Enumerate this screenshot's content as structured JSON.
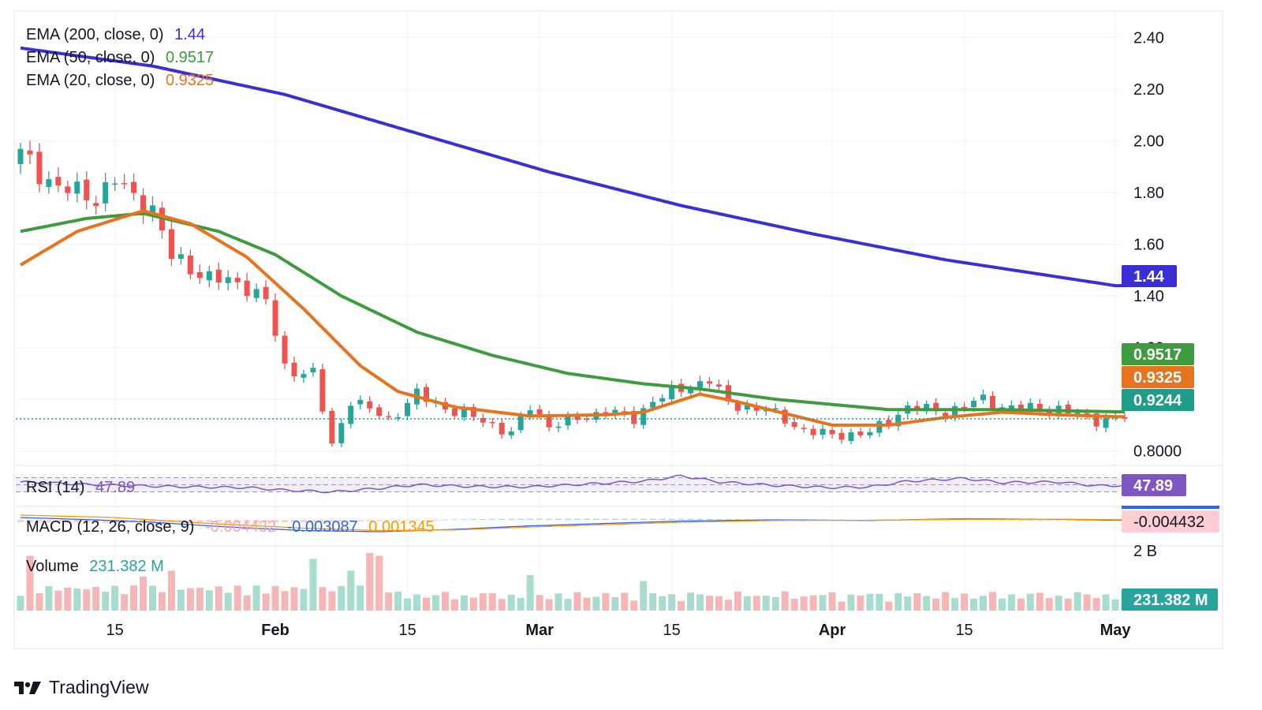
{
  "brand": {
    "name": "TradingView",
    "logo_icon": "tradingview-logo-icon"
  },
  "colors": {
    "up": "#26a69a",
    "down": "#ef5350",
    "ema200": "#3a2fd6",
    "ema50": "#3e9b3e",
    "ema20": "#e8731e",
    "last": "#1e9e88",
    "rsi": "#7e57c2",
    "macd_line": "#2962ff",
    "macd_signal": "#ff9800"
  },
  "legend": {
    "ema200": {
      "label": "EMA (200, close, 0)",
      "value": "1.44"
    },
    "ema50": {
      "label": "EMA (50, close, 0)",
      "value": "0.9517"
    },
    "ema20": {
      "label": "EMA (20, close, 0)",
      "value": "0.9325"
    },
    "rsi": {
      "label": "RSI (14)",
      "value": "47.89"
    },
    "macd": {
      "label": "MACD (12, 26, close, 9)",
      "hist": "-0.004432",
      "macd": "-0.003087",
      "signal": "0.001345"
    },
    "volume": {
      "label": "Volume",
      "value": "231.382 M"
    }
  },
  "price_labels": [
    {
      "text": "1.44",
      "kind": "ema200"
    },
    {
      "text": "0.9517",
      "kind": "ema50"
    },
    {
      "text": "0.9325",
      "kind": "ema20"
    },
    {
      "text": "0.9244",
      "kind": "last"
    }
  ],
  "pane_labels": {
    "rsi": "47.89",
    "macd": "-0.004432",
    "volume": "231.382 M",
    "volume_axis": "2 B"
  },
  "chart_data": {
    "type": "candlestick",
    "title": "",
    "y_axis": {
      "ticks": [
        2.4,
        2.2,
        2.0,
        1.8,
        1.6,
        1.4,
        1.2,
        1.0,
        0.8
      ],
      "tick_labels": [
        "2.40",
        "2.20",
        "2.00",
        "1.80",
        "1.60",
        "1.40",
        "1.20",
        "",
        "0.8000"
      ],
      "range": [
        0.75,
        2.5
      ]
    },
    "x_axis": {
      "ticks": [
        {
          "label": "15",
          "day": 10,
          "bold": false
        },
        {
          "label": "Feb",
          "day": 27,
          "bold": true
        },
        {
          "label": "15",
          "day": 41,
          "bold": false
        },
        {
          "label": "Mar",
          "day": 55,
          "bold": true
        },
        {
          "label": "15",
          "day": 69,
          "bold": false
        },
        {
          "label": "Apr",
          "day": 86,
          "bold": true
        },
        {
          "label": "15",
          "day": 100,
          "bold": false
        },
        {
          "label": "May",
          "day": 116,
          "bold": true
        }
      ],
      "range": [
        -0.5,
        116.5
      ]
    },
    "last_price": 0.9244,
    "ema200_anchors": [
      [
        0,
        2.36
      ],
      [
        14,
        2.29
      ],
      [
        28,
        2.18
      ],
      [
        42,
        2.03
      ],
      [
        56,
        1.88
      ],
      [
        70,
        1.75
      ],
      [
        84,
        1.64
      ],
      [
        98,
        1.54
      ],
      [
        116,
        1.44
      ]
    ],
    "ema50_anchors": [
      [
        0,
        1.65
      ],
      [
        7,
        1.7
      ],
      [
        13,
        1.72
      ],
      [
        21,
        1.65
      ],
      [
        27,
        1.56
      ],
      [
        34,
        1.4
      ],
      [
        42,
        1.26
      ],
      [
        50,
        1.17
      ],
      [
        58,
        1.1
      ],
      [
        66,
        1.06
      ],
      [
        72,
        1.04
      ],
      [
        80,
        1.0
      ],
      [
        92,
        0.96
      ],
      [
        104,
        0.96
      ],
      [
        116,
        0.9517
      ]
    ],
    "ema20_anchors": [
      [
        0,
        1.52
      ],
      [
        6,
        1.65
      ],
      [
        13,
        1.73
      ],
      [
        18,
        1.68
      ],
      [
        24,
        1.55
      ],
      [
        30,
        1.35
      ],
      [
        36,
        1.13
      ],
      [
        40,
        1.03
      ],
      [
        46,
        0.97
      ],
      [
        54,
        0.935
      ],
      [
        62,
        0.94
      ],
      [
        66,
        0.95
      ],
      [
        72,
        1.02
      ],
      [
        76,
        0.99
      ],
      [
        86,
        0.9
      ],
      [
        92,
        0.9
      ],
      [
        98,
        0.93
      ],
      [
        104,
        0.95
      ],
      [
        110,
        0.94
      ],
      [
        116,
        0.9325
      ]
    ],
    "close_anchors": [
      [
        0,
        1.95
      ],
      [
        2,
        1.88
      ],
      [
        4,
        1.82
      ],
      [
        8,
        1.78
      ],
      [
        10,
        1.85
      ],
      [
        12,
        1.78
      ],
      [
        14,
        1.74
      ],
      [
        16,
        1.55
      ],
      [
        20,
        1.47
      ],
      [
        24,
        1.44
      ],
      [
        26,
        1.38
      ],
      [
        28,
        1.12
      ],
      [
        31,
        1.1
      ],
      [
        33,
        0.82
      ],
      [
        35,
        1.0
      ],
      [
        39,
        0.92
      ],
      [
        42,
        1.02
      ],
      [
        44,
        0.98
      ],
      [
        48,
        0.93
      ],
      [
        52,
        0.87
      ],
      [
        54,
        0.97
      ],
      [
        56,
        0.9
      ],
      [
        60,
        0.93
      ],
      [
        62,
        0.96
      ],
      [
        65,
        0.92
      ],
      [
        67,
        1.0
      ],
      [
        71,
        1.05
      ],
      [
        73,
        1.08
      ],
      [
        75,
        0.98
      ],
      [
        79,
        0.96
      ],
      [
        83,
        0.88
      ],
      [
        86,
        0.86
      ],
      [
        90,
        0.87
      ],
      [
        94,
        0.97
      ],
      [
        98,
        0.95
      ],
      [
        102,
        1.0
      ],
      [
        104,
        0.97
      ],
      [
        110,
        0.96
      ],
      [
        114,
        0.92
      ],
      [
        116,
        0.9244
      ]
    ],
    "rsi": {
      "range": [
        0,
        100
      ],
      "bands": [
        70,
        50,
        30
      ],
      "last": 47.89,
      "anchors": [
        [
          0,
          58
        ],
        [
          8,
          50
        ],
        [
          16,
          45
        ],
        [
          24,
          42
        ],
        [
          28,
          35
        ],
        [
          33,
          30
        ],
        [
          38,
          40
        ],
        [
          42,
          50
        ],
        [
          48,
          45
        ],
        [
          54,
          44
        ],
        [
          60,
          52
        ],
        [
          66,
          60
        ],
        [
          70,
          75
        ],
        [
          74,
          58
        ],
        [
          80,
          48
        ],
        [
          86,
          42
        ],
        [
          90,
          44
        ],
        [
          94,
          60
        ],
        [
          100,
          68
        ],
        [
          104,
          56
        ],
        [
          110,
          58
        ],
        [
          114,
          47
        ],
        [
          116,
          47.89
        ]
      ]
    },
    "macd": {
      "last_hist": -0.004432,
      "last_macd": -0.003087,
      "last_signal": 0.001345,
      "macd_anchors": [
        [
          0,
          0.02
        ],
        [
          8,
          0.0
        ],
        [
          14,
          -0.02
        ],
        [
          22,
          -0.06
        ],
        [
          30,
          -0.09
        ],
        [
          38,
          -0.1
        ],
        [
          46,
          -0.08
        ],
        [
          54,
          -0.05
        ],
        [
          62,
          -0.03
        ],
        [
          70,
          -0.01
        ],
        [
          80,
          0.0
        ],
        [
          90,
          -0.005
        ],
        [
          100,
          0.01
        ],
        [
          110,
          0.005
        ],
        [
          116,
          -0.003087
        ]
      ],
      "signal_anchors": [
        [
          0,
          0.04
        ],
        [
          10,
          0.02
        ],
        [
          20,
          -0.03
        ],
        [
          30,
          -0.07
        ],
        [
          38,
          -0.09
        ],
        [
          46,
          -0.085
        ],
        [
          54,
          -0.06
        ],
        [
          62,
          -0.04
        ],
        [
          70,
          -0.02
        ],
        [
          80,
          -0.005
        ],
        [
          90,
          -0.003
        ],
        [
          100,
          0.005
        ],
        [
          110,
          0.006
        ],
        [
          116,
          0.001345
        ]
      ]
    },
    "volume": {
      "last": 231382000,
      "axis_max": 2000000000,
      "spikes": [
        [
          1,
          1.85
        ],
        [
          13,
          1.15
        ],
        [
          16,
          1.35
        ],
        [
          31,
          1.75
        ],
        [
          35,
          1.35
        ],
        [
          37,
          1.95
        ],
        [
          38,
          1.85
        ],
        [
          54,
          1.2
        ],
        [
          66,
          1.0
        ]
      ]
    }
  }
}
